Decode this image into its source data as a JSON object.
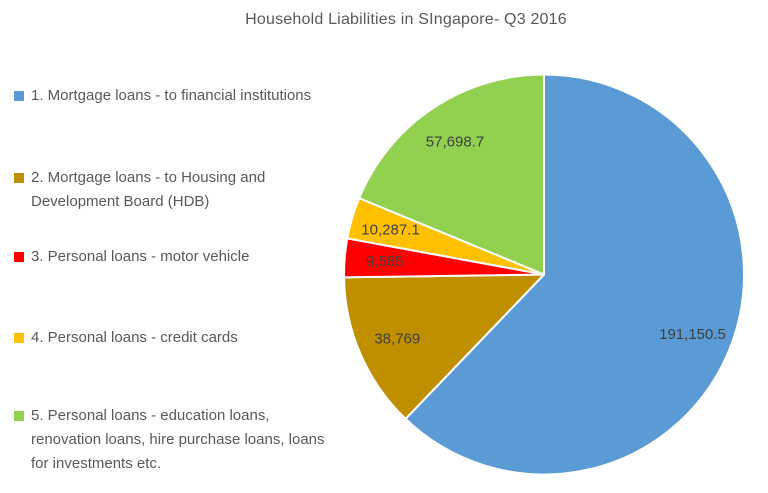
{
  "title": "Household Liabilities in SIngapore- Q3 2016",
  "colors": {
    "title_text": "#595959",
    "legend_text": "#595959",
    "data_label_text": "#404040",
    "slice_border": "#FFFFFF",
    "background": "#FFFFFF"
  },
  "chart_data": {
    "type": "pie",
    "title": "Household Liabilities in SIngapore- Q3 2016",
    "legend_position": "left",
    "data_labels": "inside",
    "start_angle_deg": 0,
    "direction": "clockwise",
    "total": 307490.3,
    "slices": [
      {
        "label": "1. Mortgage loans - to financial institutions",
        "legend_lines": [
          "1. Mortgage loans - to financial institutions"
        ],
        "value": 191150.5,
        "display": "191,150.5",
        "color": "#5B9BD5"
      },
      {
        "label": "2. Mortgage loans - to Housing and Development Board (HDB)",
        "legend_lines": [
          "2. Mortgage loans - to Housing and",
          "Development Board (HDB)"
        ],
        "value": 38769,
        "display": "38,769",
        "color": "#BF8F00"
      },
      {
        "label": "3. Personal loans - motor vehicle",
        "legend_lines": [
          "3. Personal loans - motor vehicle"
        ],
        "value": 9585,
        "display": "9,585",
        "color": "#FF0000"
      },
      {
        "label": "4. Personal loans - credit cards",
        "legend_lines": [
          "4. Personal loans - credit cards"
        ],
        "value": 10287.1,
        "display": "10,287.1",
        "color": "#FFC000"
      },
      {
        "label": "5. Personal loans - education loans, renovation loans, hire purchase loans, loans for investments etc.",
        "legend_lines": [
          "5. Personal loans - education loans,",
          "renovation loans, hire purchase loans, loans",
          "for investments etc."
        ],
        "value": 57698.7,
        "display": "57,698.7",
        "color": "#92D050"
      }
    ]
  }
}
